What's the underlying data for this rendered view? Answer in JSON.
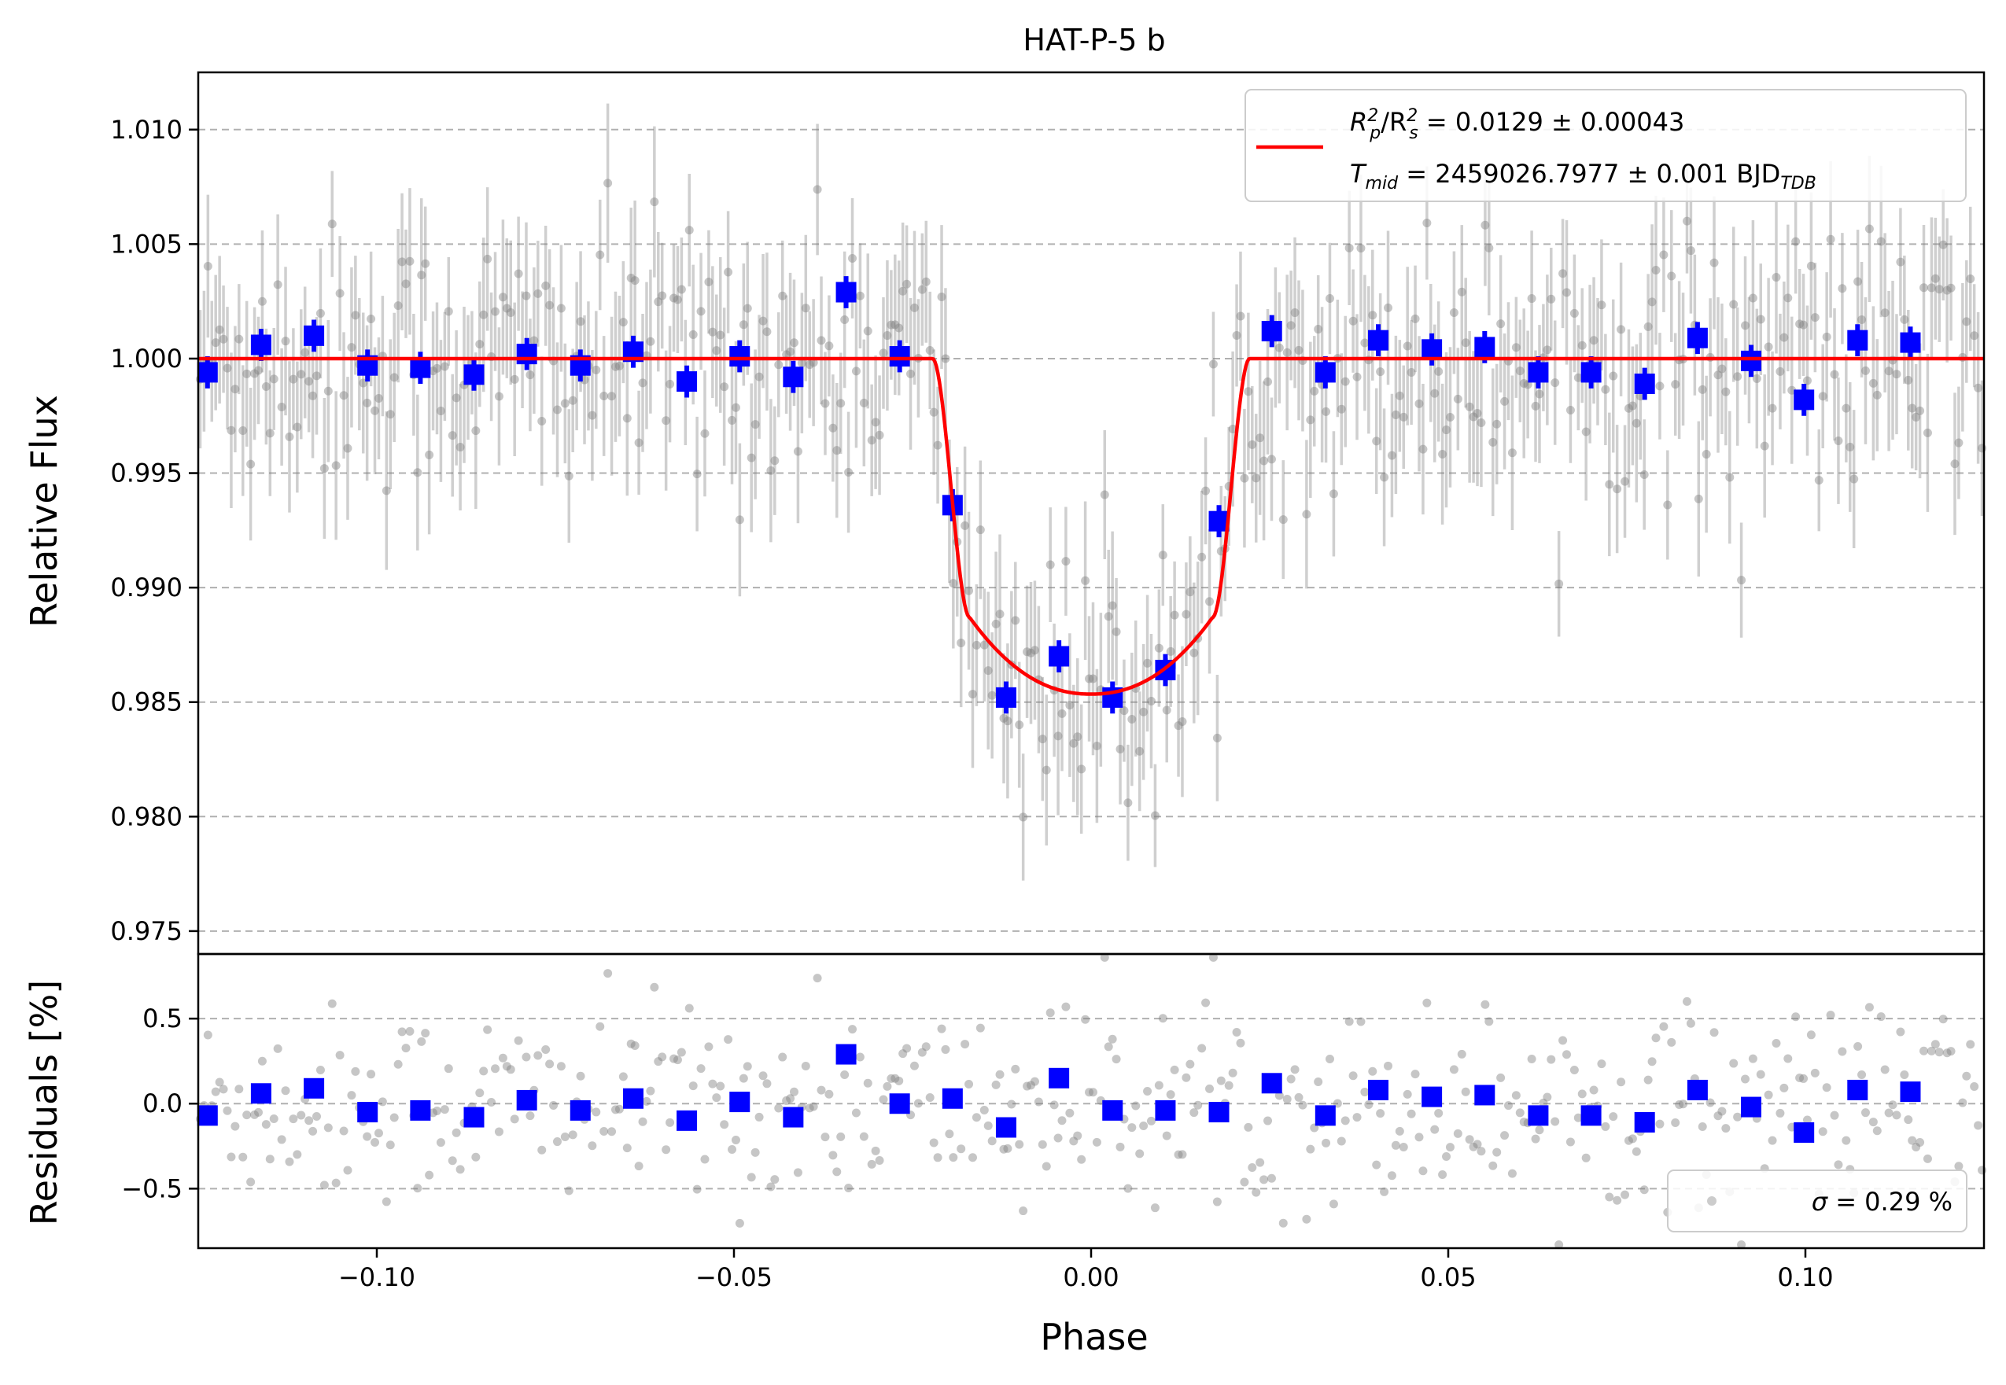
{
  "chart_data": [
    {
      "type": "scatter",
      "panel": "top",
      "title": "HAT-P-5 b",
      "xlabel": "",
      "ylabel": "Relative Flux",
      "xlim": [
        -0.125,
        0.125
      ],
      "ylim": [
        0.974,
        1.0125
      ],
      "grid": "y-dashed",
      "ytick_labels": [
        "0.975",
        "0.980",
        "0.985",
        "0.990",
        "0.995",
        "1.000",
        "1.005",
        "1.010"
      ],
      "ytick_values": [
        0.975,
        0.98,
        0.985,
        0.99,
        0.995,
        1.0,
        1.005,
        1.01
      ],
      "legend": {
        "placement": "top-right",
        "line1_a": "R",
        "line1_b": "p",
        "line1_c": "2",
        "line1_d": "/R",
        "line1_e": "s",
        "line1_f": "2",
        "line1_g": " = 0.0129 ± 0.00043",
        "line2_a": "T",
        "line2_b": "mid",
        "line2_c": " = 2459026.7977 ± 0.001 BJD",
        "line2_d": "TDB"
      },
      "series": [
        {
          "type": "line",
          "color": "#ff0000",
          "model": "transit",
          "baseline": 1.0,
          "depth_center": 0.98535,
          "t1": 0.0222,
          "t2": 0.017
        },
        {
          "type": "errorbar-binned",
          "color": "#0000ff",
          "x": [
            -0.1237,
            -0.1162,
            -0.1088,
            -0.1013,
            -0.0939,
            -0.0864,
            -0.079,
            -0.0715,
            -0.0641,
            -0.0566,
            -0.0492,
            -0.0417,
            -0.0343,
            -0.0268,
            -0.0194,
            -0.0119,
            -0.0045,
            0.003,
            0.0104,
            0.0179,
            0.0253,
            0.0328,
            0.0402,
            0.0477,
            0.0551,
            0.0626,
            0.07,
            0.0775,
            0.0849,
            0.0924,
            0.0998,
            0.1073,
            0.1147
          ],
          "y": [
            0.9994,
            1.0006,
            1.001,
            0.9997,
            0.9996,
            0.9993,
            1.0002,
            0.9997,
            1.0003,
            0.999,
            1.0001,
            0.9992,
            1.0029,
            1.0001,
            0.9936,
            0.9852,
            0.987,
            0.9852,
            0.9864,
            0.9929,
            1.0012,
            0.9994,
            1.0008,
            1.0004,
            1.0005,
            0.9994,
            0.9994,
            0.9989,
            1.0009,
            0.9999,
            0.9982,
            1.0008,
            1.0007
          ],
          "yerr": 0.0007
        },
        {
          "type": "errorbar-raw",
          "color": "#808080",
          "n": 460,
          "yerr_range": [
            0.0022,
            0.0035
          ],
          "scatter": 0.0029
        }
      ]
    },
    {
      "type": "scatter",
      "panel": "bottom",
      "title": "",
      "xlabel": "Phase",
      "ylabel": "Residuals [%]",
      "xlim": [
        -0.125,
        0.125
      ],
      "ylim": [
        -0.85,
        0.88
      ],
      "grid": "y-dashed",
      "xtick_labels": [
        "−0.10",
        "−0.05",
        "0.00",
        "0.05",
        "0.10"
      ],
      "xtick_values": [
        -0.1,
        -0.05,
        0.0,
        0.05,
        0.1
      ],
      "ytick_labels": [
        "−0.5",
        "0.0",
        "0.5"
      ],
      "ytick_values": [
        -0.5,
        0.0,
        0.5
      ],
      "legend": {
        "placement": "bottom-right",
        "text_sym": "σ",
        "text_rest": " = 0.29 %"
      },
      "series": [
        {
          "type": "binned",
          "color": "#0000ff",
          "x": [
            -0.1237,
            -0.1162,
            -0.1088,
            -0.1013,
            -0.0939,
            -0.0864,
            -0.079,
            -0.0715,
            -0.0641,
            -0.0566,
            -0.0492,
            -0.0417,
            -0.0343,
            -0.0268,
            -0.0194,
            -0.0119,
            -0.0045,
            0.003,
            0.0104,
            0.0179,
            0.0253,
            0.0328,
            0.0402,
            0.0477,
            0.0551,
            0.0626,
            0.07,
            0.0775,
            0.0849,
            0.0924,
            0.0998,
            0.1073,
            0.1147
          ],
          "y": [
            -0.07,
            0.06,
            0.09,
            -0.05,
            -0.04,
            -0.08,
            0.02,
            -0.04,
            0.03,
            -0.1,
            0.01,
            -0.08,
            0.29,
            0.0,
            0.03,
            -0.14,
            0.15,
            -0.04,
            -0.04,
            -0.05,
            0.12,
            -0.07,
            0.08,
            0.04,
            0.05,
            -0.07,
            -0.07,
            -0.11,
            0.08,
            -0.02,
            -0.17,
            0.08,
            0.07
          ]
        },
        {
          "type": "raw",
          "color": "#808080",
          "n": 460,
          "scatter": 0.29
        }
      ]
    }
  ]
}
